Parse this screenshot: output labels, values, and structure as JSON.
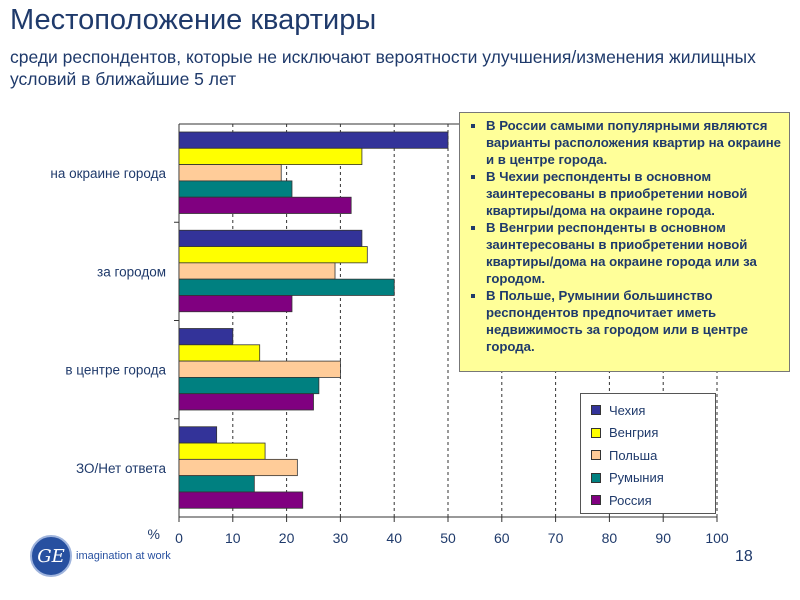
{
  "title": "Местоположение квартиры",
  "subtitle": "среди респондентов, которые не исключают вероятности улучшения/изменения жилищных условий в ближайшие 5 лет",
  "notes": [
    "В России самыми популярными являются варианты расположения квартир на окраине и в центре города.",
    "В Чехии респонденты в основном заинтересованы в приобретении новой квартиры/дома на окраине города.",
    "В Венгрии респонденты в основном заинтересованы в приобретении новой квартиры/дома на окраине города или за городом.",
    "В Польше, Румынии большинство респондентов предпочитает иметь недвижимость за городом или в центре города."
  ],
  "logo": {
    "mark": "GE",
    "tagline": "imagination at work"
  },
  "page_number": "18",
  "chart_data": {
    "type": "bar",
    "orientation": "horizontal",
    "categories": [
      "на окраине города",
      "за городом",
      "в центре города",
      "ЗО/Нет ответа"
    ],
    "series": [
      {
        "name": "Чехия",
        "color": "#333399",
        "values": [
          50,
          34,
          10,
          7
        ]
      },
      {
        "name": "Венгрия",
        "color": "#ffff00",
        "values": [
          34,
          35,
          15,
          16
        ]
      },
      {
        "name": "Польша",
        "color": "#ffcc99",
        "values": [
          19,
          29,
          30,
          22
        ]
      },
      {
        "name": "Румыния",
        "color": "#008080",
        "values": [
          21,
          40,
          26,
          14
        ]
      },
      {
        "name": "Россия",
        "color": "#800080",
        "values": [
          32,
          21,
          25,
          23
        ]
      }
    ],
    "xlabel": "%",
    "xlim": [
      0,
      100
    ],
    "xticks": [
      0,
      10,
      20,
      30,
      40,
      50,
      60,
      70,
      80,
      90,
      100
    ],
    "grid": "vertical dashed",
    "legend": "bottom-right"
  }
}
